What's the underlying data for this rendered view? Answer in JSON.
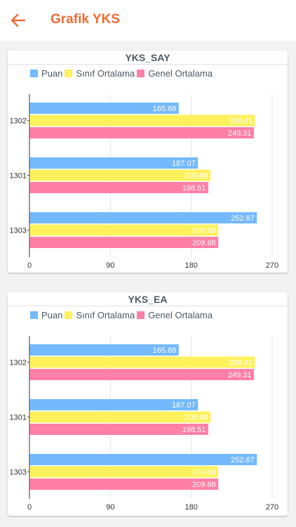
{
  "header": {
    "title": "Grafik YKS"
  },
  "colors": {
    "accent": "#ef6b33",
    "puan": "#74b9fc",
    "sinif": "#fff15c",
    "genel": "#ff7fa6"
  },
  "charts": [
    {
      "title": "YKS_SAY",
      "legend": [
        "Puan",
        "Sınıf Ortalama",
        "Genel Ortalama"
      ]
    },
    {
      "title": "YKS_EA",
      "legend": [
        "Puan",
        "Sınıf Ortalama",
        "Genel Ortalama"
      ]
    }
  ],
  "chart_data": [
    {
      "type": "bar",
      "orientation": "horizontal",
      "title": "YKS_SAY",
      "categories": [
        "1302",
        "1301",
        "1303"
      ],
      "series": [
        {
          "name": "Puan",
          "color": "#74b9fc",
          "values": [
            165.68,
            187.07,
            252.67
          ]
        },
        {
          "name": "Sınıf Ortalama",
          "color": "#fff15c",
          "values": [
            250.41,
            200.99,
            209.56
          ]
        },
        {
          "name": "Genel Ortalama",
          "color": "#ff7fa6",
          "values": [
            249.31,
            198.51,
            209.68
          ]
        }
      ],
      "xlim": [
        0,
        270
      ],
      "xticks": [
        "0",
        "90",
        "180",
        "270"
      ],
      "grid": true,
      "legend_position": "top-left"
    },
    {
      "type": "bar",
      "orientation": "horizontal",
      "title": "YKS_EA",
      "categories": [
        "1302",
        "1301",
        "1303"
      ],
      "series": [
        {
          "name": "Puan",
          "color": "#74b9fc",
          "values": [
            165.68,
            187.07,
            252.67
          ]
        },
        {
          "name": "Sınıf Ortalama",
          "color": "#fff15c",
          "values": [
            250.41,
            200.99,
            209.56
          ]
        },
        {
          "name": "Genel Ortalama",
          "color": "#ff7fa6",
          "values": [
            249.31,
            198.51,
            209.68
          ]
        }
      ],
      "xlim": [
        0,
        270
      ],
      "xticks": [
        "0",
        "90",
        "180",
        "270"
      ],
      "grid": true,
      "legend_position": "top-left"
    }
  ]
}
